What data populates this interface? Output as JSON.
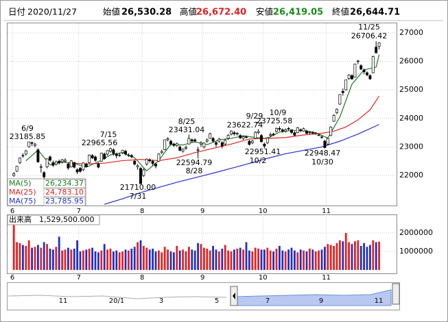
{
  "header": {
    "date_label": "日付",
    "date": "2020/11/27",
    "open_label": "始値",
    "open": "26,530.28",
    "high_label": "高値",
    "high": "26,672.40",
    "low_label": "安値",
    "low": "26,419.05",
    "close_label": "終値",
    "close": "26,644.71"
  },
  "chart_data": {
    "type": "candlestick",
    "grid": true,
    "ylim": [
      20945,
      27335
    ],
    "yticks": [
      22000,
      23000,
      24000,
      25000,
      26000,
      27000
    ],
    "xticks": [
      {
        "value": 0,
        "label": "6"
      },
      {
        "value": 22,
        "label": "7"
      },
      {
        "value": 43,
        "label": "8"
      },
      {
        "value": 63,
        "label": "9"
      },
      {
        "value": 83,
        "label": "10"
      },
      {
        "value": 104,
        "label": "11"
      }
    ],
    "up_color": "#ffffff",
    "down_color": "#000000",
    "candles": [
      [
        22000,
        22120,
        21950,
        22062
      ],
      [
        22150,
        22340,
        22120,
        22325
      ],
      [
        22450,
        22630,
        22400,
        22613
      ],
      [
        22700,
        22780,
        22620,
        22695
      ],
      [
        22750,
        22900,
        22700,
        22863
      ],
      [
        23000,
        23180,
        22980,
        23178
      ],
      [
        23150,
        23185.85,
        23030,
        23124
      ],
      [
        23050,
        23150,
        22980,
        23091
      ],
      [
        22900,
        22950,
        22450,
        22473
      ],
      [
        22300,
        22400,
        22100,
        22305
      ],
      [
        22100,
        22150,
        21800,
        21950
      ],
      [
        22300,
        22600,
        22250,
        22582
      ],
      [
        22650,
        22700,
        22480,
        22533
      ],
      [
        22450,
        22520,
        22300,
        22355
      ],
      [
        22400,
        22520,
        22350,
        22478
      ],
      [
        22500,
        22560,
        22380,
        22437
      ],
      [
        22480,
        22580,
        22420,
        22549
      ],
      [
        22500,
        22600,
        22450,
        22534
      ],
      [
        22400,
        22450,
        22200,
        22259
      ],
      [
        22300,
        22540,
        22280,
        22512
      ],
      [
        22450,
        22480,
        22250,
        22288
      ],
      [
        22200,
        22250,
        22050,
        22121
      ],
      [
        22250,
        22300,
        22100,
        22145
      ],
      [
        22200,
        22460,
        22150,
        22438
      ],
      [
        22400,
        22450,
        22280,
        22306
      ],
      [
        22450,
        22740,
        22420,
        22714
      ],
      [
        22700,
        22750,
        22580,
        22614
      ],
      [
        22650,
        22700,
        22480,
        22529
      ],
      [
        22400,
        22450,
        22250,
        22290
      ],
      [
        22500,
        22800,
        22480,
        22784
      ],
      [
        22750,
        22800,
        22550,
        22587
      ],
      [
        22750,
        22890,
        22700,
        22870
      ],
      [
        22850,
        22965.56,
        22800,
        22945
      ],
      [
        22900,
        22950,
        22700,
        22770
      ],
      [
        22750,
        22800,
        22600,
        22696
      ],
      [
        22700,
        22800,
        22650,
        22717
      ],
      [
        22800,
        22900,
        22750,
        22884
      ],
      [
        22850,
        22900,
        22700,
        22751
      ],
      [
        22700,
        22780,
        22650,
        22715
      ],
      [
        22700,
        22750,
        22600,
        22657
      ],
      [
        22500,
        22550,
        22350,
        22397
      ],
      [
        22300,
        22400,
        22200,
        22339
      ],
      [
        22250,
        22300,
        21710,
        21710
      ],
      [
        22000,
        22250,
        21950,
        22195
      ],
      [
        22400,
        22600,
        22350,
        22573
      ],
      [
        22550,
        22600,
        22450,
        22514
      ],
      [
        22500,
        22550,
        22350,
        22418
      ],
      [
        22400,
        22450,
        22250,
        22329
      ],
      [
        22500,
        22780,
        22480,
        22750
      ],
      [
        22800,
        22900,
        22750,
        22843
      ],
      [
        22900,
        23260,
        22880,
        23249
      ],
      [
        23250,
        23340,
        23200,
        23289
      ],
      [
        23200,
        23250,
        23050,
        23096
      ],
      [
        23100,
        23150,
        23000,
        23051
      ],
      [
        23050,
        23150,
        23000,
        23110
      ],
      [
        23000,
        23050,
        22850,
        22880
      ],
      [
        22850,
        22950,
        22800,
        22920
      ],
      [
        22950,
        23050,
        22900,
        22985
      ],
      [
        23100,
        23431.04,
        23100,
        23296
      ],
      [
        23250,
        23300,
        23150,
        23209
      ],
      [
        23250,
        23300,
        23150,
        23208
      ],
      [
        22900,
        23000,
        22594.79,
        22882
      ],
      [
        23100,
        23200,
        23000,
        23139
      ],
      [
        23000,
        23150,
        22950,
        23138
      ],
      [
        23200,
        23300,
        23150,
        23247
      ],
      [
        23300,
        23500,
        23280,
        23465
      ],
      [
        23300,
        23350,
        23150,
        23205
      ],
      [
        23150,
        23200,
        23000,
        23089
      ],
      [
        23200,
        23320,
        23150,
        23274
      ],
      [
        23150,
        23200,
        22950,
        23032
      ],
      [
        23100,
        23280,
        23050,
        23235
      ],
      [
        23300,
        23450,
        23250,
        23406
      ],
      [
        23450,
        23580,
        23400,
        23559
      ],
      [
        23500,
        23560,
        23400,
        23454
      ],
      [
        23450,
        23520,
        23400,
        23475
      ],
      [
        23400,
        23450,
        23280,
        23319
      ],
      [
        23300,
        23400,
        23250,
        23360
      ],
      [
        23350,
        23400,
        23300,
        23346
      ],
      [
        23200,
        23250,
        23050,
        23087
      ],
      [
        23150,
        23250,
        23100,
        23204
      ],
      [
        23300,
        23550,
        23280,
        23511
      ],
      [
        23500,
        23622.74,
        23450,
        23539
      ],
      [
        23400,
        23450,
        23150,
        23185
      ],
      [
        23100,
        23150,
        22951.41,
        23029
      ],
      [
        23150,
        23350,
        23100,
        23312
      ],
      [
        23400,
        23500,
        23350,
        23433
      ],
      [
        23450,
        23500,
        23380,
        23422
      ],
      [
        23550,
        23680,
        23500,
        23647
      ],
      [
        23650,
        23725.58,
        23550,
        23619
      ],
      [
        23600,
        23650,
        23500,
        23558
      ],
      [
        23550,
        23650,
        23500,
        23601
      ],
      [
        23650,
        23700,
        23580,
        23626
      ],
      [
        23600,
        23620,
        23450,
        23507
      ],
      [
        23500,
        23550,
        23380,
        23410
      ],
      [
        23500,
        23700,
        23480,
        23671
      ],
      [
        23600,
        23650,
        23520,
        23567
      ],
      [
        23550,
        23680,
        23530,
        23639
      ],
      [
        23550,
        23600,
        23450,
        23474
      ],
      [
        23500,
        23550,
        23450,
        23516
      ],
      [
        23500,
        23550,
        23450,
        23494
      ],
      [
        23450,
        23520,
        23420,
        23485
      ],
      [
        23400,
        23450,
        23380,
        23418
      ],
      [
        23350,
        23400,
        23280,
        23331
      ],
      [
        23200,
        23250,
        22948.47,
        22977
      ],
      [
        23100,
        23320,
        23050,
        23295
      ],
      [
        23400,
        23720,
        23380,
        23695
      ],
      [
        23900,
        24150,
        23880,
        24105
      ],
      [
        24200,
        24350,
        24150,
        24325
      ],
      [
        24500,
        24850,
        24480,
        24839
      ],
      [
        24950,
        25050,
        24800,
        24905
      ],
      [
        25000,
        25360,
        24980,
        25349
      ],
      [
        25400,
        25550,
        25350,
        25520
      ],
      [
        25500,
        25550,
        25350,
        25385
      ],
      [
        25450,
        25920,
        25430,
        25906
      ],
      [
        26000,
        26050,
        25900,
        26014
      ],
      [
        25850,
        25900,
        25700,
        25728
      ],
      [
        25700,
        25750,
        25550,
        25634
      ],
      [
        25600,
        25650,
        25480,
        25527
      ],
      [
        25500,
        25550,
        25350,
        25386
      ],
      [
        25600,
        26200,
        25580,
        26165
      ],
      [
        26500,
        26706.42,
        26350,
        26297
      ],
      [
        26530.28,
        26672.4,
        26419.05,
        26644.71
      ]
    ],
    "series": [
      {
        "name": "MA(5)",
        "color": "#1a7a1a",
        "latest": {
          "value": 26234.37,
          "label": "26,234.37"
        },
        "x": [
          4,
          8,
          12,
          16,
          20,
          24,
          28,
          32,
          36,
          40,
          44,
          48,
          52,
          56,
          60,
          64,
          68,
          72,
          76,
          80,
          84,
          88,
          92,
          96,
          100,
          104,
          108,
          112,
          116,
          120,
          121
        ],
        "values": [
          22512,
          22890,
          22370,
          22470,
          22420,
          22290,
          22480,
          22720,
          22800,
          22620,
          22160,
          22520,
          23100,
          23070,
          23180,
          23080,
          23250,
          23300,
          23390,
          23330,
          23300,
          23520,
          23580,
          23580,
          23500,
          23310,
          24050,
          25200,
          25700,
          25800,
          26234.37
        ]
      },
      {
        "name": "MA(25)",
        "color": "#e02020",
        "latest": {
          "value": 24783.1,
          "label": "24,783.10"
        },
        "x": [
          18,
          24,
          30,
          36,
          42,
          48,
          54,
          60,
          66,
          72,
          78,
          84,
          90,
          96,
          102,
          106,
          110,
          114,
          118,
          121
        ],
        "values": [
          22450,
          22400,
          22430,
          22520,
          22560,
          22520,
          22620,
          22800,
          22950,
          23100,
          23280,
          23300,
          23330,
          23420,
          23480,
          23550,
          23700,
          23950,
          24300,
          24783.1
        ]
      },
      {
        "name": "MA(75)",
        "color": "#2030d0",
        "latest": {
          "value": 23785.95,
          "label": "23,785.95"
        },
        "x": [
          30,
          36,
          42,
          48,
          54,
          60,
          66,
          72,
          78,
          84,
          90,
          96,
          102,
          108,
          114,
          121
        ],
        "values": [
          20990,
          21180,
          21400,
          21580,
          21760,
          21920,
          22080,
          22250,
          22420,
          22600,
          22760,
          22880,
          23000,
          23200,
          23450,
          23785.95
        ]
      }
    ],
    "annotations": [
      {
        "date": "6/9",
        "value": 23185.85
      },
      {
        "date": "7/15",
        "value": 22965.56
      },
      {
        "date": "8/25",
        "value": 23431.04
      },
      {
        "date": "9/29",
        "value": 23622.74
      },
      {
        "date": "10/9",
        "value": 23725.58
      },
      {
        "date": "11/25",
        "value": 26706.42
      },
      {
        "date": "7/31",
        "value": {
          "value": 21710,
          "label": "21710.00"
        }
      },
      {
        "date": "8/28",
        "value": 22594.79
      },
      {
        "date": "10/2",
        "value": 22951.41
      },
      {
        "date": "10/30",
        "value": 22948.47
      }
    ],
    "volume": {
      "name": "出来高",
      "latest": {
        "value": 1529500,
        "label": "1,529,500.000"
      },
      "up_color": "#e82020",
      "down_color": "#2030c0",
      "ylim": [
        0,
        3000000
      ],
      "yticks": [
        1000000,
        2000000
      ],
      "values": [
        2500000,
        1500000,
        1450000,
        1350000,
        1300000,
        1600000,
        1200000,
        1250000,
        1350000,
        1200000,
        1500000,
        1400000,
        1150000,
        1100000,
        1250000,
        1800000,
        1050000,
        1100000,
        1200000,
        1100000,
        1150000,
        1600000,
        1000000,
        1050000,
        1100000,
        1150000,
        1200000,
        1000000,
        950000,
        1050000,
        1400000,
        1100000,
        1150000,
        1000000,
        1050000,
        950000,
        1000000,
        1100000,
        1050000,
        1150000,
        1250000,
        1500000,
        1600000,
        1300000,
        1200000,
        1100000,
        1150000,
        1000000,
        1050000,
        950000,
        1250000,
        1100000,
        1000000,
        950000,
        1300000,
        1050000,
        1100000,
        1000000,
        1250000,
        1100000,
        1050000,
        1450000,
        1400000,
        1200000,
        1150000,
        1050000,
        1300000,
        1100000,
        1000000,
        1150000,
        1350000,
        1050000,
        1000000,
        1100000,
        1150000,
        1200000,
        1100000,
        1500000,
        1050000,
        1000000,
        1200000,
        1150000,
        1100000,
        1100000,
        1200000,
        1050000,
        1000000,
        1150000,
        1300000,
        1050000,
        1000000,
        1100000,
        1200000,
        1050000,
        950000,
        1100000,
        1050000,
        1000000,
        1150000,
        1100000,
        1000000,
        1050000,
        1100000,
        1250000,
        1400000,
        1350000,
        1300000,
        1450000,
        1600000,
        1550000,
        2000000,
        1500000,
        1400000,
        1550000,
        1600000,
        1300000,
        1450000,
        1250000,
        1350000,
        1600000,
        1500000,
        1529500
      ]
    }
  },
  "navigator": {
    "labels": [
      "11",
      "20/1",
      "3",
      "5",
      "7",
      "9",
      "11"
    ]
  }
}
